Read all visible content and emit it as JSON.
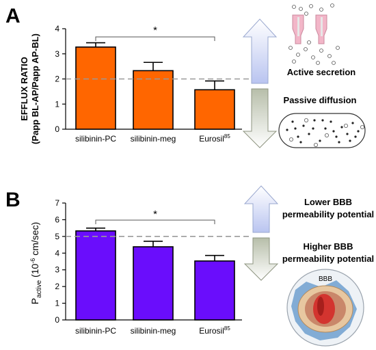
{
  "panels": {
    "a": {
      "letter": "A",
      "ylabel_line1": "EFFLUX RATIO",
      "ylabel_line2": "(Papp BL-AP/Papp AP-BL)",
      "arrow_top_label": "Active secretion",
      "arrow_bottom_label": "Passive diffusion",
      "significance": "*"
    },
    "b": {
      "letter": "B",
      "ylabel_main": "P",
      "ylabel_sub": "active",
      "ylabel_unit_pre": " (10",
      "ylabel_unit_exp": "-6",
      "ylabel_unit_post": " cm/sec)",
      "arrow_top_label_line1": "Lower BBB",
      "arrow_top_label_line2": "permeability potential",
      "arrow_bottom_label_line1": "Higher BBB",
      "arrow_bottom_label_line2": "permeability potential",
      "bbb_label": "BBB",
      "significance": "*"
    }
  },
  "chart_data": [
    {
      "type": "bar",
      "categories": [
        "silibinin-PC",
        "silibinin-meg",
        "Eurosil85"
      ],
      "category_display": [
        {
          "main": "silibinin-PC",
          "sup": ""
        },
        {
          "main": "silibinin-meg",
          "sup": ""
        },
        {
          "main": "Eurosil",
          "sup": "85"
        }
      ],
      "values": [
        3.27,
        2.33,
        1.57
      ],
      "errors": [
        0.17,
        0.33,
        0.35
      ],
      "ylim": [
        0,
        4
      ],
      "yticks": [
        "0",
        "1",
        "2",
        "3",
        "4"
      ],
      "reference_line": 2,
      "bar_color": "#ff6600",
      "significance_pair": [
        0,
        2
      ]
    },
    {
      "type": "bar",
      "categories": [
        "silibinin-PC",
        "silibinin-meg",
        "Eurosil85"
      ],
      "category_display": [
        {
          "main": "silibinin-PC",
          "sup": ""
        },
        {
          "main": "silibinin-meg",
          "sup": ""
        },
        {
          "main": "Eurosil",
          "sup": "85"
        }
      ],
      "values": [
        5.33,
        4.38,
        3.53
      ],
      "errors": [
        0.17,
        0.33,
        0.33
      ],
      "ylim": [
        0,
        7
      ],
      "yticks": [
        "0",
        "1",
        "2",
        "3",
        "4",
        "5",
        "6",
        "7"
      ],
      "reference_line": 5,
      "bar_color": "#6a0dfc",
      "significance_pair": [
        0,
        2
      ]
    }
  ],
  "colors": {
    "arrow_up": "#cfd6f4",
    "arrow_down": "#c9cfc0",
    "reference_line": "#999999"
  }
}
